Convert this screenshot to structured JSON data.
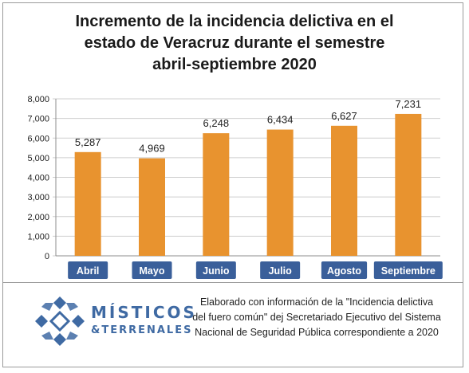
{
  "chart_data": {
    "type": "bar",
    "title_lines": [
      "Incremento de la incidencia delictiva en el",
      "estado de Veracruz durante el semestre",
      "abril-septiembre 2020"
    ],
    "categories": [
      "Abril",
      "Mayo",
      "Junio",
      "Julio",
      "Agosto",
      "Septiembre"
    ],
    "values": [
      5287,
      4969,
      6248,
      6434,
      6627,
      7231
    ],
    "value_labels": [
      "5,287",
      "4,969",
      "6,248",
      "6,434",
      "6,627",
      "7,231"
    ],
    "ylim": [
      0,
      8000
    ],
    "yticks": [
      0,
      1000,
      2000,
      3000,
      4000,
      5000,
      6000,
      7000,
      8000
    ],
    "ytick_labels": [
      "0",
      "1,000",
      "2,000",
      "3,000",
      "4,000",
      "5,000",
      "6,000",
      "7,000",
      "8,000"
    ],
    "grid": true,
    "bar_color": "#e8932f",
    "category_label_bg": "#3a5f9a"
  },
  "footer": {
    "logo_text_top": "MÍSTICOS",
    "logo_text_bottom": "&TERRENALES",
    "logo_color": "#3f6aa3",
    "credit_lines": [
      "Elaborado con información de la \"Incidencia delictiva",
      "del fuero común\" dej Secretariado Ejecutivo del Sistema",
      "Nacional de Seguridad Pública correspondiente a 2020"
    ]
  }
}
